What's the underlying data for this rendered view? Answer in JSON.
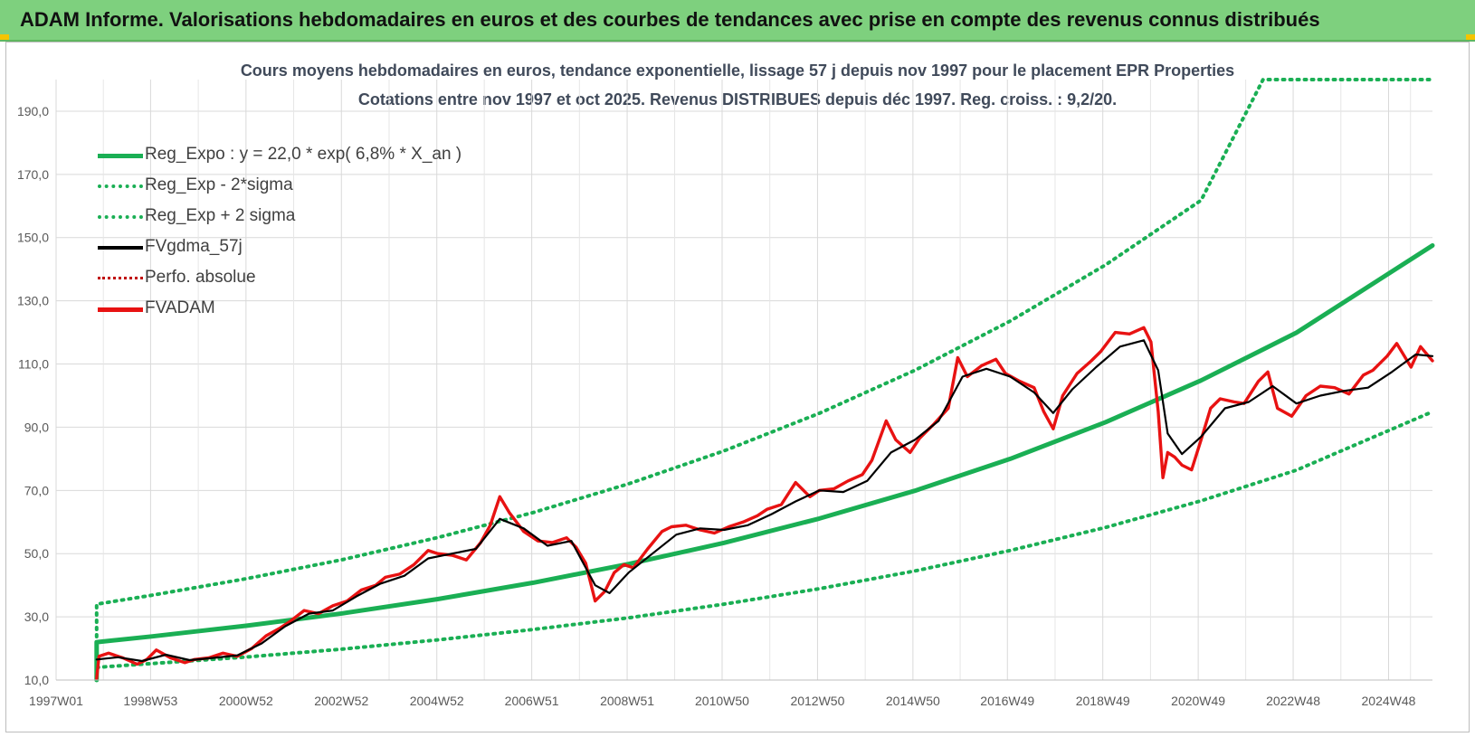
{
  "banner": {
    "title": "ADAM Informe. Valorisations hebdomadaires en euros et des courbes de tendances avec prise en compte des revenus connus distribués"
  },
  "chart_data": {
    "type": "line",
    "title": "Cours moyens hebdomadaires en euros, tendance exponentielle, lissage 57 j depuis nov 1997 pour le placement EPR Properties",
    "subtitle": "Cotations entre nov 1997 et oct 2025. Revenus DISTRIBUES depuis déc 1997. Reg. croiss. : 9,2/20.",
    "xlabel": "",
    "ylabel": "",
    "ylim": [
      10,
      200
    ],
    "xlim": [
      1997.0,
      2025.85
    ],
    "yticks": [
      "10,0",
      "30,0",
      "50,0",
      "70,0",
      "90,0",
      "110,0",
      "130,0",
      "150,0",
      "170,0",
      "190,0"
    ],
    "xticks": [
      "1997W01",
      "1998W53",
      "2000W52",
      "2002W52",
      "2004W52",
      "2006W51",
      "2008W51",
      "2010W50",
      "2012W50",
      "2014W50",
      "2016W49",
      "2018W49",
      "2020W49",
      "2022W48",
      "2024W48"
    ],
    "grid": true,
    "legend_position": "top-left",
    "colors": {
      "trend": "#1aaf54",
      "band": "#1aaf54",
      "smooth": "#000000",
      "perfo": "#c00000",
      "fvadam": "#e81212"
    },
    "series": [
      {
        "name": "Reg_Expo : y = 22,0 * exp( 6,8% *  X_an )",
        "style": "solid-thick",
        "x": [
          1997.85,
          1997.85,
          1999.0,
          2001.0,
          2003.0,
          2005.0,
          2007.0,
          2009.0,
          2011.0,
          2013.0,
          2015.0,
          2017.0,
          2019.0,
          2021.0,
          2023.0,
          2025.85
        ],
        "values": [
          10.0,
          22.0,
          23.8,
          27.2,
          31.1,
          35.6,
          40.8,
          46.7,
          53.4,
          61.1,
          69.9,
          80.0,
          91.6,
          104.8,
          119.9,
          147.5
        ]
      },
      {
        "name": "Reg_Exp - 2*sigma",
        "style": "dotted",
        "x": [
          1997.85,
          1999.0,
          2001.0,
          2003.0,
          2005.0,
          2007.0,
          2009.0,
          2011.0,
          2013.0,
          2015.0,
          2017.0,
          2019.0,
          2021.0,
          2023.0,
          2025.85
        ],
        "values": [
          14.0,
          15.2,
          17.3,
          19.8,
          22.7,
          26.0,
          29.7,
          34.0,
          38.9,
          44.5,
          51.0,
          58.3,
          66.7,
          76.4,
          94.9
        ]
      },
      {
        "name": "Reg_Exp + 2 sigma",
        "style": "dotted",
        "x": [
          1997.85,
          1997.85,
          1999.0,
          2001.0,
          2003.0,
          2005.0,
          2007.0,
          2009.0,
          2011.0,
          2013.0,
          2015.0,
          2017.0,
          2019.0,
          2021.0,
          2022.3,
          2025.85
        ],
        "values": [
          10.0,
          34.0,
          36.8,
          42.1,
          48.1,
          55.1,
          63.0,
          72.1,
          82.5,
          94.4,
          108.0,
          123.6,
          141.4,
          161.8,
          200.0,
          200.0
        ]
      },
      {
        "name": "FVgdma_57j",
        "style": "solid",
        "x": [
          1997.85,
          1998.3,
          1998.8,
          1999.3,
          1999.8,
          2000.3,
          2000.8,
          2001.3,
          2001.8,
          2002.3,
          2002.8,
          2003.3,
          2003.8,
          2004.3,
          2004.8,
          2005.3,
          2005.8,
          2006.3,
          2006.8,
          2007.3,
          2007.8,
          2008.3,
          2008.6,
          2009.0,
          2009.5,
          2010.0,
          2010.5,
          2011.0,
          2011.5,
          2012.0,
          2012.5,
          2013.0,
          2013.5,
          2014.0,
          2014.5,
          2015.0,
          2015.5,
          2016.0,
          2016.5,
          2017.0,
          2017.5,
          2017.9,
          2018.3,
          2018.8,
          2019.3,
          2019.8,
          2020.1,
          2020.3,
          2020.6,
          2021.0,
          2021.5,
          2022.0,
          2022.5,
          2023.0,
          2023.5,
          2024.0,
          2024.5,
          2025.0,
          2025.5,
          2025.85
        ],
        "values": [
          16.5,
          17.2,
          16.0,
          18.0,
          16.3,
          17.0,
          17.8,
          21.5,
          27.0,
          31.0,
          32.0,
          36.5,
          40.5,
          43.0,
          48.5,
          50.0,
          51.5,
          61.0,
          58.0,
          52.5,
          54.0,
          40.0,
          37.5,
          44.0,
          50.0,
          56.0,
          58.0,
          57.5,
          59.0,
          62.5,
          66.5,
          70.0,
          69.5,
          73.0,
          82.0,
          86.0,
          92.0,
          106.0,
          108.5,
          106.0,
          101.0,
          94.5,
          102.0,
          109.0,
          115.5,
          117.5,
          108.0,
          88.0,
          81.5,
          87.0,
          96.0,
          98.0,
          103.0,
          97.5,
          100.0,
          101.5,
          102.5,
          107.5,
          113.0,
          112.5
        ]
      },
      {
        "name": "Perfo. absolue",
        "style": "dotted",
        "x": [],
        "values": []
      },
      {
        "name": "FVADAM",
        "style": "solid-thick",
        "x": [
          1997.85,
          1997.9,
          1998.1,
          1998.4,
          1998.7,
          1998.9,
          1999.1,
          1999.4,
          1999.7,
          1999.9,
          2000.2,
          2000.5,
          2000.8,
          2001.1,
          2001.4,
          2001.7,
          2001.9,
          2002.2,
          2002.5,
          2002.8,
          2003.1,
          2003.4,
          2003.7,
          2003.9,
          2004.2,
          2004.5,
          2004.8,
          2005.0,
          2005.3,
          2005.6,
          2005.9,
          2006.1,
          2006.3,
          2006.5,
          2006.8,
          2007.1,
          2007.4,
          2007.7,
          2007.9,
          2008.1,
          2008.3,
          2008.5,
          2008.7,
          2008.9,
          2009.1,
          2009.4,
          2009.7,
          2009.9,
          2010.2,
          2010.5,
          2010.8,
          2011.1,
          2011.4,
          2011.7,
          2011.9,
          2012.2,
          2012.5,
          2012.8,
          2013.0,
          2013.3,
          2013.6,
          2013.9,
          2014.1,
          2014.4,
          2014.6,
          2014.9,
          2015.1,
          2015.4,
          2015.7,
          2015.9,
          2016.1,
          2016.4,
          2016.7,
          2016.9,
          2017.2,
          2017.5,
          2017.7,
          2017.9,
          2018.1,
          2018.4,
          2018.7,
          2018.9,
          2019.2,
          2019.5,
          2019.8,
          2019.95,
          2020.1,
          2020.2,
          2020.3,
          2020.45,
          2020.6,
          2020.8,
          2021.0,
          2021.2,
          2021.4,
          2021.7,
          2021.9,
          2022.2,
          2022.4,
          2022.6,
          2022.9,
          2023.2,
          2023.5,
          2023.8,
          2024.1,
          2024.4,
          2024.6,
          2024.9,
          2025.1,
          2025.4,
          2025.6,
          2025.85
        ],
        "values": [
          10.5,
          17.5,
          18.5,
          17.0,
          15.0,
          16.5,
          19.5,
          17.0,
          15.5,
          16.5,
          17.0,
          18.5,
          17.5,
          20.0,
          24.0,
          26.5,
          28.5,
          32.0,
          31.0,
          33.5,
          35.0,
          38.5,
          40.0,
          42.5,
          43.5,
          46.5,
          51.0,
          50.0,
          49.5,
          48.0,
          53.5,
          59.0,
          68.0,
          63.0,
          57.0,
          54.0,
          53.5,
          55.0,
          52.0,
          47.0,
          35.0,
          38.0,
          44.0,
          46.5,
          45.5,
          51.5,
          57.0,
          58.5,
          59.0,
          57.5,
          56.5,
          58.5,
          60.0,
          62.0,
          64.0,
          65.5,
          72.5,
          68.0,
          70.0,
          70.5,
          73.0,
          75.0,
          79.5,
          92.0,
          86.0,
          82.0,
          86.5,
          91.0,
          96.0,
          112.0,
          106.0,
          109.5,
          111.5,
          107.0,
          104.5,
          102.5,
          95.0,
          89.5,
          100.0,
          107.0,
          111.0,
          114.0,
          120.0,
          119.5,
          121.5,
          117.0,
          95.0,
          74.0,
          82.0,
          80.5,
          78.0,
          76.5,
          86.0,
          96.0,
          99.0,
          98.0,
          97.5,
          104.5,
          107.5,
          96.0,
          93.5,
          100.0,
          103.0,
          102.5,
          100.5,
          106.5,
          108.0,
          112.5,
          116.5,
          109.0,
          115.5,
          111.0
        ]
      }
    ]
  },
  "legend": {
    "items": [
      {
        "label": "Reg_Expo : y = 22,0 * exp( 6,8% *  X_an )"
      },
      {
        "label": "Reg_Exp - 2*sigma"
      },
      {
        "label": "Reg_Exp + 2 sigma"
      },
      {
        "label": "FVgdma_57j"
      },
      {
        "label": "Perfo. absolue"
      },
      {
        "label": "FVADAM"
      }
    ]
  }
}
